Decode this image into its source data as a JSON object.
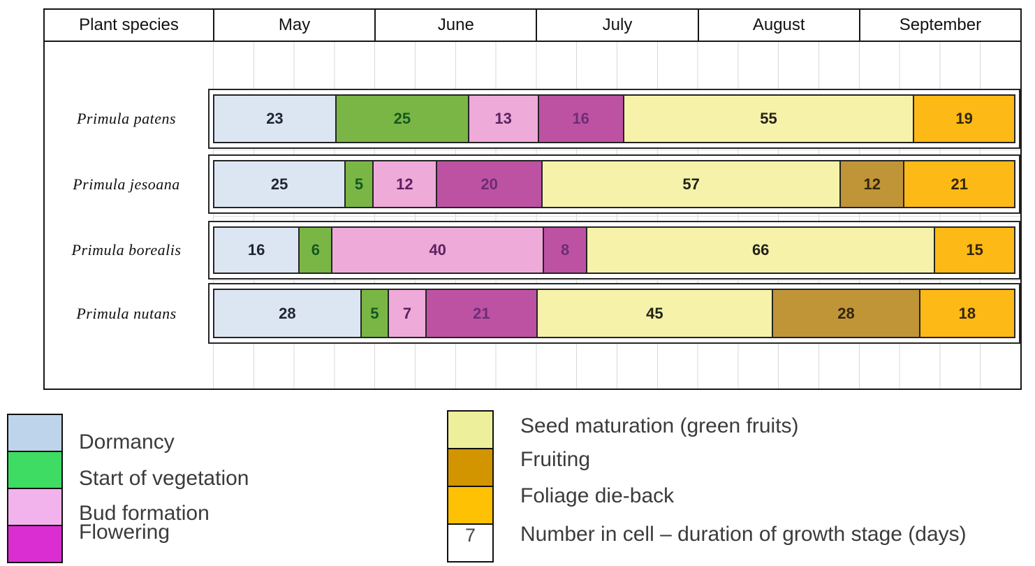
{
  "header": {
    "columns": [
      "Plant species",
      "May",
      "June",
      "July",
      "August",
      "September"
    ]
  },
  "chart_data": {
    "type": "bar",
    "variant": "horizontal-stacked-phenology-gantt",
    "unit": "days",
    "months": [
      "May",
      "June",
      "July",
      "August",
      "September"
    ],
    "total_days_span": 153,
    "layout": {
      "gridlines": "faint vertical gray lines at quarter-month spacing behind bars",
      "legend_position": "below chart, two columns"
    },
    "stages": [
      {
        "id": "dormancy",
        "label": "Dormancy",
        "bar_color": "#dce6f3",
        "legend_color": "#bed4ea",
        "number_color": "#1f2531"
      },
      {
        "id": "start_of_vegetation",
        "label": "Start of vegetation",
        "bar_color": "#7ab646",
        "legend_color": "#3edc63",
        "number_color": "#14581f"
      },
      {
        "id": "bud_formation",
        "label": "Bud formation",
        "bar_color": "#eeaad9",
        "legend_color": "#f2b3ec",
        "number_color": "#5c2160"
      },
      {
        "id": "flowering",
        "label": "Flowering",
        "bar_color": "#bd52a3",
        "legend_color": "#da2ed2",
        "number_color": "#6d2d75"
      },
      {
        "id": "seed_maturation",
        "label": "Seed maturation (green fruits)",
        "bar_color": "#f6f2a9",
        "legend_color": "#eeef9a",
        "number_color": "#23231a"
      },
      {
        "id": "fruiting",
        "label": "Fruiting",
        "bar_color": "#c09538",
        "legend_color": "#d29500",
        "number_color": "#33260d"
      },
      {
        "id": "foliage_die_back",
        "label": "Foliage die-back",
        "bar_color": "#fdb915",
        "legend_color": "#fec103",
        "number_color": "#33260d"
      }
    ],
    "rows": [
      {
        "species": "Primula patens",
        "segments": [
          {
            "stage": "dormancy",
            "days": 23
          },
          {
            "stage": "start_of_vegetation",
            "days": 25
          },
          {
            "stage": "bud_formation",
            "days": 13
          },
          {
            "stage": "flowering",
            "days": 16
          },
          {
            "stage": "seed_maturation",
            "days": 55
          },
          {
            "stage": "foliage_die_back",
            "days": 19
          }
        ]
      },
      {
        "species": "Primula jesoana",
        "segments": [
          {
            "stage": "dormancy",
            "days": 25
          },
          {
            "stage": "start_of_vegetation",
            "days": 5
          },
          {
            "stage": "bud_formation",
            "days": 12
          },
          {
            "stage": "flowering",
            "days": 20
          },
          {
            "stage": "seed_maturation",
            "days": 57
          },
          {
            "stage": "fruiting",
            "days": 12
          },
          {
            "stage": "foliage_die_back",
            "days": 21
          }
        ]
      },
      {
        "species": "Primula borealis",
        "segments": [
          {
            "stage": "dormancy",
            "days": 16
          },
          {
            "stage": "start_of_vegetation",
            "days": 6
          },
          {
            "stage": "bud_formation",
            "days": 40
          },
          {
            "stage": "flowering",
            "days": 8
          },
          {
            "stage": "seed_maturation",
            "days": 66
          },
          {
            "stage": "foliage_die_back",
            "days": 15
          }
        ]
      },
      {
        "species": "Primula nutans",
        "segments": [
          {
            "stage": "dormancy",
            "days": 28
          },
          {
            "stage": "start_of_vegetation",
            "days": 5
          },
          {
            "stage": "bud_formation",
            "days": 7
          },
          {
            "stage": "flowering",
            "days": 21
          },
          {
            "stage": "seed_maturation",
            "days": 45
          },
          {
            "stage": "fruiting",
            "days": 28
          },
          {
            "stage": "foliage_die_back",
            "days": 18
          }
        ]
      }
    ]
  },
  "legend": {
    "left_items": [
      {
        "stage": "dormancy",
        "label": "Dormancy"
      },
      {
        "stage": "start_of_vegetation",
        "label": "Start of vegetation"
      },
      {
        "stage": "bud_formation",
        "label": "Bud formation"
      },
      {
        "stage": "flowering",
        "label": "Flowering"
      }
    ],
    "right_items": [
      {
        "stage": "seed_maturation",
        "label": "Seed maturation (green fruits)"
      },
      {
        "stage": "fruiting",
        "label": "Fruiting"
      },
      {
        "stage": "foliage_die_back",
        "label": "Foliage die-back"
      }
    ],
    "number_note": {
      "symbol": "7",
      "label": "Number in cell – duration of growth stage (days)"
    }
  }
}
